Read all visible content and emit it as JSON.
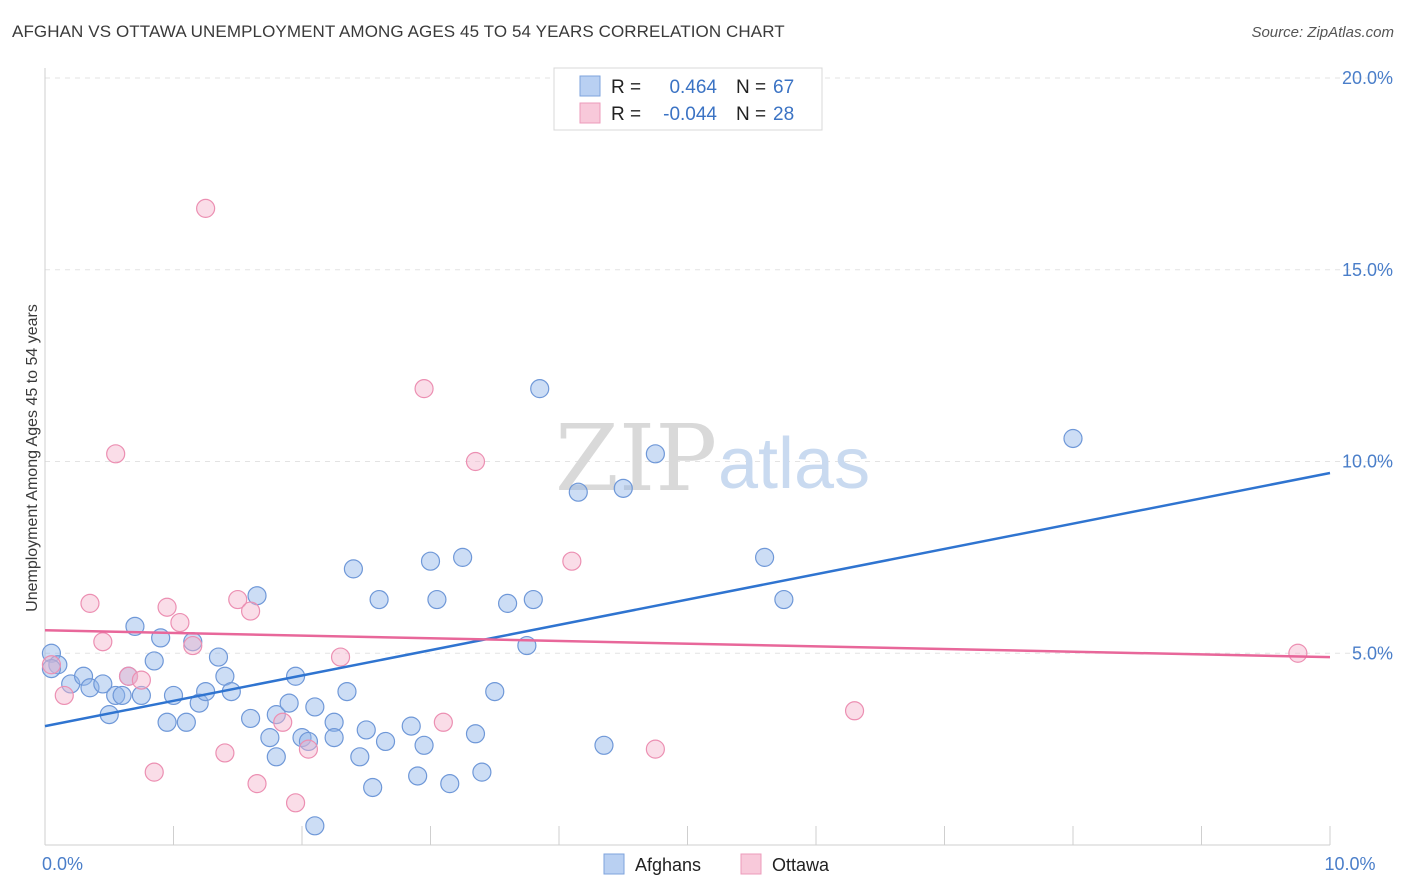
{
  "title": "AFGHAN VS OTTAWA UNEMPLOYMENT AMONG AGES 45 TO 54 YEARS CORRELATION CHART",
  "source": "Source: ZipAtlas.com",
  "watermark": {
    "zip": "ZIP",
    "atlas": "atlas"
  },
  "legend": {
    "r_label": "R =",
    "n_label": "N =",
    "rows": [
      {
        "r": "0.464",
        "n": "67"
      },
      {
        "r": "-0.044",
        "n": "28"
      }
    ]
  },
  "chart_data": {
    "type": "scatter",
    "title": "AFGHAN VS OTTAWA UNEMPLOYMENT AMONG AGES 45 TO 54 YEARS CORRELATION CHART",
    "xlabel": "",
    "ylabel": "Unemployment Among Ages 45 to 54 years",
    "xlim": [
      0,
      10
    ],
    "ylim": [
      0,
      20
    ],
    "x_ticks": [
      0,
      10
    ],
    "x_tick_labels": [
      "0.0%",
      "10.0%"
    ],
    "y_ticks": [
      5,
      10,
      15,
      20
    ],
    "y_tick_labels": [
      "5.0%",
      "10.0%",
      "15.0%",
      "20.0%"
    ],
    "series": [
      {
        "name": "Afghans",
        "color": "#8fb3e8",
        "edge": "#6f98d8",
        "line_color": "#2f74d0",
        "trend": [
          [
            0.0,
            3.1
          ],
          [
            10.0,
            9.7
          ]
        ],
        "points": [
          [
            0.05,
            5.0
          ],
          [
            0.1,
            4.7
          ],
          [
            0.05,
            4.6
          ],
          [
            0.2,
            4.2
          ],
          [
            0.3,
            4.4
          ],
          [
            0.35,
            4.1
          ],
          [
            0.45,
            4.2
          ],
          [
            0.5,
            3.4
          ],
          [
            0.55,
            3.9
          ],
          [
            0.6,
            3.9
          ],
          [
            0.65,
            4.4
          ],
          [
            0.7,
            5.7
          ],
          [
            0.75,
            3.9
          ],
          [
            0.85,
            4.8
          ],
          [
            0.9,
            5.4
          ],
          [
            0.95,
            3.2
          ],
          [
            1.0,
            3.9
          ],
          [
            1.1,
            3.2
          ],
          [
            1.15,
            5.3
          ],
          [
            1.2,
            3.7
          ],
          [
            1.25,
            4.0
          ],
          [
            1.35,
            4.9
          ],
          [
            1.4,
            4.4
          ],
          [
            1.45,
            4.0
          ],
          [
            1.6,
            3.3
          ],
          [
            1.65,
            6.5
          ],
          [
            1.75,
            2.8
          ],
          [
            1.8,
            3.4
          ],
          [
            1.8,
            2.3
          ],
          [
            1.9,
            3.7
          ],
          [
            1.95,
            4.4
          ],
          [
            2.0,
            2.8
          ],
          [
            2.05,
            2.7
          ],
          [
            2.1,
            3.6
          ],
          [
            2.1,
            0.5
          ],
          [
            2.25,
            3.2
          ],
          [
            2.25,
            2.8
          ],
          [
            2.35,
            4.0
          ],
          [
            2.4,
            7.2
          ],
          [
            2.45,
            2.3
          ],
          [
            2.5,
            3.0
          ],
          [
            2.55,
            1.5
          ],
          [
            2.6,
            6.4
          ],
          [
            2.65,
            2.7
          ],
          [
            2.85,
            3.1
          ],
          [
            2.9,
            1.8
          ],
          [
            2.95,
            2.6
          ],
          [
            3.0,
            7.4
          ],
          [
            3.05,
            6.4
          ],
          [
            3.15,
            1.6
          ],
          [
            3.25,
            7.5
          ],
          [
            3.35,
            2.9
          ],
          [
            3.4,
            1.9
          ],
          [
            3.5,
            4.0
          ],
          [
            3.6,
            6.3
          ],
          [
            3.75,
            5.2
          ],
          [
            3.8,
            6.4
          ],
          [
            3.85,
            11.9
          ],
          [
            4.15,
            9.2
          ],
          [
            4.35,
            2.6
          ],
          [
            4.5,
            9.3
          ],
          [
            4.75,
            10.2
          ],
          [
            5.6,
            7.5
          ],
          [
            5.75,
            6.4
          ],
          [
            8.0,
            10.6
          ]
        ]
      },
      {
        "name": "Ottawa",
        "color": "#f5b3cc",
        "edge": "#ec8fb2",
        "line_color": "#e8679a",
        "trend": [
          [
            0.0,
            5.6
          ],
          [
            10.0,
            4.9
          ]
        ],
        "points": [
          [
            0.05,
            4.7
          ],
          [
            0.15,
            3.9
          ],
          [
            0.35,
            6.3
          ],
          [
            0.45,
            5.3
          ],
          [
            0.55,
            10.2
          ],
          [
            0.65,
            4.4
          ],
          [
            0.75,
            4.3
          ],
          [
            0.85,
            1.9
          ],
          [
            0.95,
            6.2
          ],
          [
            1.05,
            5.8
          ],
          [
            1.15,
            5.2
          ],
          [
            1.25,
            16.6
          ],
          [
            1.4,
            2.4
          ],
          [
            1.5,
            6.4
          ],
          [
            1.6,
            6.1
          ],
          [
            1.65,
            1.6
          ],
          [
            1.85,
            3.2
          ],
          [
            1.95,
            1.1
          ],
          [
            2.05,
            2.5
          ],
          [
            2.3,
            4.9
          ],
          [
            2.95,
            11.9
          ],
          [
            3.1,
            3.2
          ],
          [
            3.35,
            10.0
          ],
          [
            4.1,
            7.4
          ],
          [
            4.75,
            2.5
          ],
          [
            6.3,
            3.5
          ],
          [
            9.75,
            5.0
          ]
        ]
      }
    ]
  }
}
